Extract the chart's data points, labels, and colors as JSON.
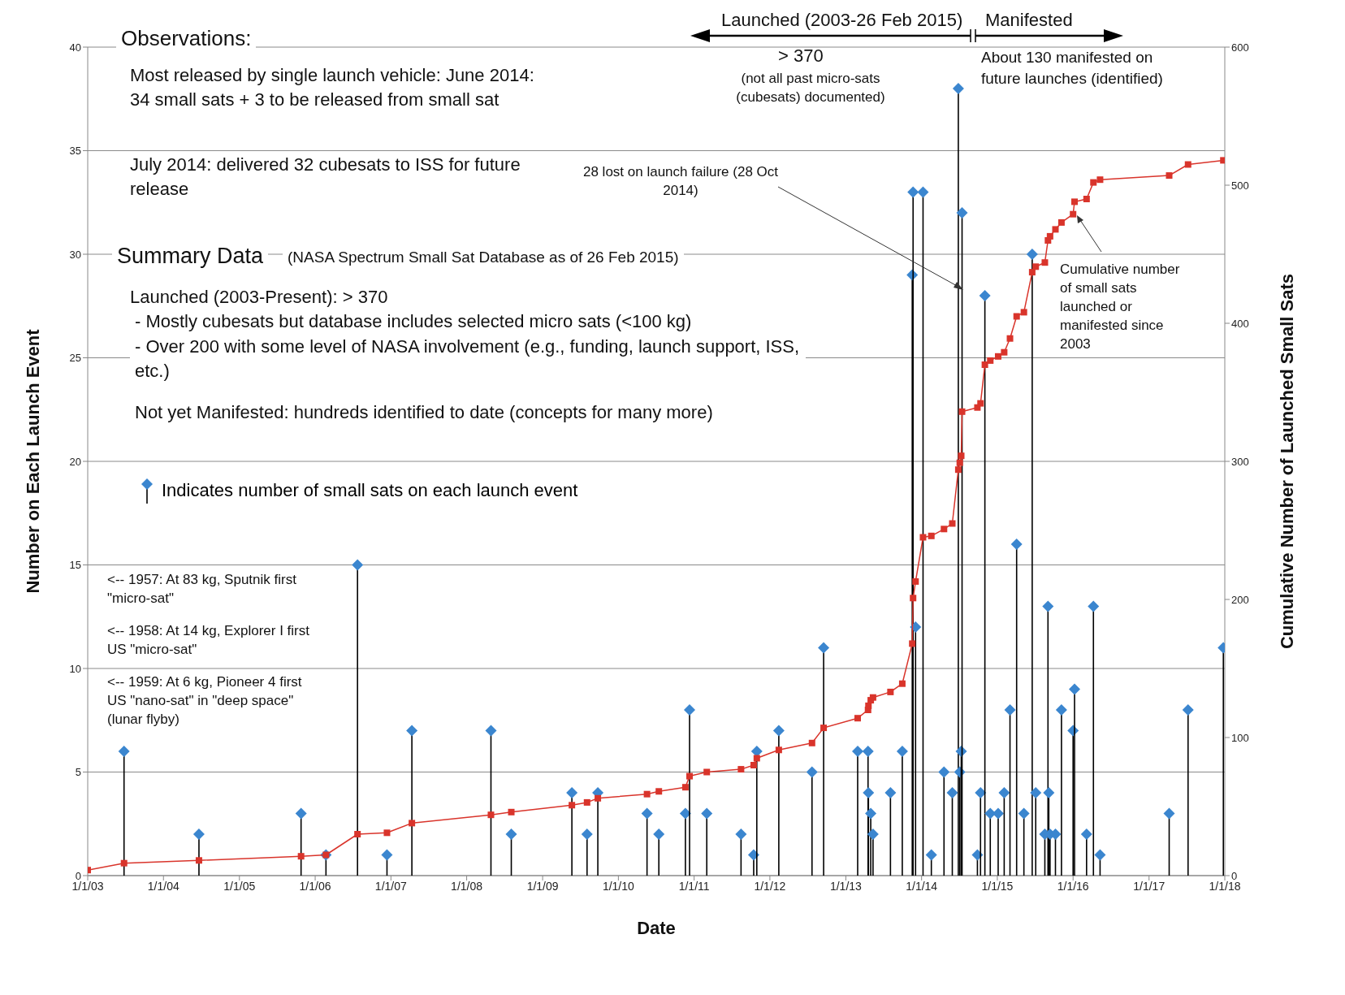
{
  "chart_data": {
    "type": "lollipop",
    "xlabel": "Date",
    "ylabel": "Number on Each Launch Event",
    "y2label": "Cumulative Number of Launched Small Sats",
    "xlim": [
      "2003-01-01",
      "2018-01-01"
    ],
    "xticks": [
      {
        "value": "2003-01-01",
        "label": "1/1/03"
      },
      {
        "value": "2004-01-01",
        "label": "1/1/04"
      },
      {
        "value": "2005-01-01",
        "label": "1/1/05"
      },
      {
        "value": "2006-01-01",
        "label": "1/1/06"
      },
      {
        "value": "2007-01-01",
        "label": "1/1/07"
      },
      {
        "value": "2008-01-01",
        "label": "1/1/08"
      },
      {
        "value": "2009-01-01",
        "label": "1/1/09"
      },
      {
        "value": "2010-01-01",
        "label": "1/1/10"
      },
      {
        "value": "2011-01-01",
        "label": "1/1/11"
      },
      {
        "value": "2012-01-01",
        "label": "1/1/12"
      },
      {
        "value": "2013-01-01",
        "label": "1/1/13"
      },
      {
        "value": "2014-01-01",
        "label": "1/1/14"
      },
      {
        "value": "2015-01-01",
        "label": "1/1/15"
      },
      {
        "value": "2016-01-01",
        "label": "1/1/16"
      },
      {
        "value": "2017-01-01",
        "label": "1/1/17"
      },
      {
        "value": "2018-01-01",
        "label": "1/1/18"
      }
    ],
    "ylim": [
      0,
      40
    ],
    "yticks": [
      0,
      5,
      10,
      15,
      20,
      25,
      30,
      35,
      40
    ],
    "y2lim": [
      0,
      600
    ],
    "y2ticks": [
      0,
      100,
      200,
      300,
      400,
      500,
      600
    ],
    "grid": "y",
    "legend": "left",
    "series": [
      {
        "name": "Indicates number of small sats on each launch event",
        "color": "#3b86cf",
        "marker": "diamond",
        "x": [
          "2003-06-25",
          "2004-06-20",
          "2005-10-25",
          "2006-02-22",
          "2006-07-24",
          "2006-12-13",
          "2007-04-12",
          "2008-04-27",
          "2008-08-03",
          "2009-05-22",
          "2009-08-03",
          "2009-09-24",
          "2010-05-19",
          "2010-07-15",
          "2010-11-20",
          "2010-12-10",
          "2011-03-03",
          "2011-08-15",
          "2011-10-15",
          "2011-10-30",
          "2012-02-13",
          "2012-07-22",
          "2012-09-16",
          "2013-02-27",
          "2013-04-18",
          "2013-04-20",
          "2013-05-01",
          "2013-05-12",
          "2013-08-04",
          "2013-09-30",
          "2013-11-17",
          "2013-11-21",
          "2013-12-03",
          "2014-01-08",
          "2014-02-17",
          "2014-04-19",
          "2014-05-29",
          "2014-06-27",
          "2014-07-04",
          "2014-07-11",
          "2014-07-15",
          "2014-09-27",
          "2014-10-12",
          "2014-11-02",
          "2014-11-28",
          "2015-01-05",
          "2015-02-03",
          "2015-03-03",
          "2015-04-04",
          "2015-05-09",
          "2015-06-18",
          "2015-07-05",
          "2015-08-18",
          "2015-09-02",
          "2015-09-06",
          "2015-09-12",
          "2015-10-08",
          "2015-11-06",
          "2016-01-01",
          "2016-01-08",
          "2016-03-06",
          "2016-04-08",
          "2016-05-10",
          "2017-04-08",
          "2017-07-08",
          "2017-12-25"
        ],
        "values": [
          6,
          2,
          3,
          1,
          15,
          1,
          7,
          7,
          2,
          4,
          2,
          4,
          3,
          2,
          3,
          8,
          3,
          2,
          1,
          6,
          7,
          5,
          11,
          6,
          6,
          4,
          3,
          2,
          4,
          6,
          29,
          33,
          12,
          33,
          1,
          5,
          4,
          38,
          5,
          6,
          32,
          1,
          4,
          28,
          3,
          3,
          4,
          8,
          16,
          3,
          30,
          4,
          2,
          13,
          4,
          2,
          2,
          8,
          7,
          9,
          2,
          13,
          1,
          3,
          8,
          11
        ]
      },
      {
        "name": "Cumulative number of small sats launched or manifested since 2003",
        "type": "line",
        "axis": "y2",
        "color": "#d9342b",
        "marker": "square",
        "line_style": "solid",
        "x": [
          "2003-01-01",
          "2003-06-25",
          "2004-06-20",
          "2005-10-25",
          "2006-02-22",
          "2006-07-24",
          "2006-12-13",
          "2007-04-12",
          "2008-04-27",
          "2008-08-03",
          "2009-05-22",
          "2009-08-03",
          "2009-09-24",
          "2010-05-19",
          "2010-07-15",
          "2010-11-20",
          "2010-12-10",
          "2011-03-03",
          "2011-08-15",
          "2011-10-15",
          "2011-10-30",
          "2012-02-13",
          "2012-07-22",
          "2012-09-16",
          "2013-02-27",
          "2013-04-18",
          "2013-04-20",
          "2013-05-01",
          "2013-05-12",
          "2013-08-04",
          "2013-09-30",
          "2013-11-17",
          "2013-11-21",
          "2013-12-03",
          "2014-01-08",
          "2014-02-17",
          "2014-04-19",
          "2014-05-29",
          "2014-06-27",
          "2014-07-04",
          "2014-07-11",
          "2014-07-15",
          "2014-09-27",
          "2014-10-12",
          "2014-11-02",
          "2014-11-28",
          "2015-01-05",
          "2015-02-03",
          "2015-03-03",
          "2015-04-04",
          "2015-05-09",
          "2015-06-18",
          "2015-07-05",
          "2015-08-18",
          "2015-09-02",
          "2015-09-12",
          "2015-10-08",
          "2015-11-06",
          "2016-01-01",
          "2016-01-08",
          "2016-03-06",
          "2016-04-08",
          "2016-05-10",
          "2017-04-08",
          "2017-07-08",
          "2017-12-25"
        ],
        "values": [
          4,
          9,
          11,
          14,
          15,
          30,
          31,
          38,
          44,
          46,
          51,
          53,
          56,
          59,
          61,
          64,
          72,
          75,
          77,
          80,
          85,
          91,
          96,
          107,
          114,
          120,
          123,
          127,
          129,
          133,
          139,
          168,
          201,
          213,
          245,
          246,
          251,
          255,
          294,
          299,
          304,
          336,
          339,
          342,
          370,
          373,
          376,
          379,
          389,
          405,
          408,
          437,
          441,
          444,
          460,
          463,
          468,
          473,
          479,
          488,
          490,
          502,
          504,
          507,
          515,
          518
        ]
      }
    ],
    "annotations": [
      "Observations:",
      "Most released by single launch vehicle: June 2014: 34 small sats + 3 to be released from small sat",
      "July 2014: delivered 32 cubesats to ISS for future release",
      "Summary Data",
      "(NASA Spectrum Small Sat Database as of 26 Feb 2015)",
      "Launched (2003-Present): > 370",
      "- Mostly cubesats but database includes selected micro sats (<100 kg)",
      "- Over 200 with some level of NASA involvement (e.g., funding, launch support, ISS, etc.)",
      "Not yet Manifested: hundreds identified to date (concepts for many more)",
      "<-- 1957: At 83 kg, Sputnik first \"micro-sat\"",
      "<-- 1958: At 14 kg, Explorer I first US \"micro-sat\"",
      "<-- 1959: At 6 kg, Pioneer 4 first US \"nano-sat\" in \"deep space\" (lunar flyby)",
      "Launched (2003-26 Feb 2015)",
      "Manifested",
      "> 370",
      "(not all past micro-sats (cubesats) documented)",
      "About 130 manifested on future launches (identified)",
      "28 lost on launch failure (28 Oct 2014)"
    ]
  }
}
